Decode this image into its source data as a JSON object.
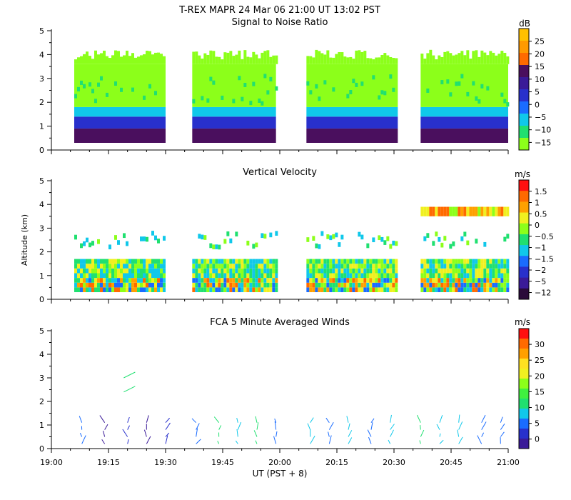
{
  "figure": {
    "title": "T-REX   MAPR 24 Mar 06   21:00 UT   13:02   PST",
    "shared_xlabel": "UT  (PST + 8)",
    "x_tick_labels": [
      "19:00",
      "19:15",
      "19:30",
      "19:45",
      "20:00",
      "20:15",
      "20:30",
      "20:45",
      "21:00"
    ]
  },
  "chart_data": [
    {
      "type": "heatmap",
      "title": "Signal to Noise Ratio",
      "xlabel": "UT  (PST + 8)",
      "ylabel": "Altitude (km)",
      "xlim": [
        "19:00",
        "21:00"
      ],
      "ylim": [
        0,
        5
      ],
      "y_ticks": [
        "0",
        "1",
        "2",
        "3",
        "4",
        "5"
      ],
      "colorbar_unit": "dB",
      "colorbar_labels": [
        "25",
        "20",
        "15",
        "10",
        "5",
        "0",
        "−5",
        "−10",
        "−15"
      ],
      "colorbar_colors": [
        "#ffc000",
        "#ff9a00",
        "#ff6a00",
        "#4a0f5e",
        "#3a1a98",
        "#2830cc",
        "#1a6cff",
        "#10c8ea",
        "#20e070",
        "#8cff1a"
      ],
      "data_segments_ut": [
        [
          "19:06",
          "19:30"
        ],
        [
          "19:37",
          "19:59"
        ],
        [
          "20:07",
          "20:31"
        ],
        [
          "20:37",
          "21:00"
        ]
      ],
      "layers_km_dB": [
        {
          "from_km": 0.3,
          "to_km": 0.9,
          "dB": 12
        },
        {
          "from_km": 0.9,
          "to_km": 1.4,
          "dB": 4
        },
        {
          "from_km": 1.4,
          "to_km": 1.8,
          "dB": -8
        },
        {
          "from_km": 1.8,
          "to_km": 3.6,
          "dB": -15
        }
      ]
    },
    {
      "type": "heatmap",
      "title": "Vertical Velocity",
      "xlabel": "UT  (PST + 8)",
      "ylabel": "Altitude (km)",
      "xlim": [
        "19:00",
        "21:00"
      ],
      "ylim": [
        0,
        5
      ],
      "y_ticks": [
        "0",
        "1",
        "2",
        "3",
        "4",
        "5"
      ],
      "colorbar_unit": "m/s",
      "colorbar_labels": [
        "1.5",
        "1",
        "0.5",
        "0",
        "−0.5",
        "−1",
        "−1.5",
        "−2",
        "−5",
        "−12"
      ],
      "colorbar_colors": [
        "#ff1010",
        "#ff6a00",
        "#ffa000",
        "#f0f020",
        "#8cff1a",
        "#20e070",
        "#10c8ea",
        "#1a6cff",
        "#2830cc",
        "#3a1a98",
        "#2a0a3a"
      ],
      "data_segments_ut": [
        [
          "19:06",
          "19:30"
        ],
        [
          "19:37",
          "19:59"
        ],
        [
          "20:07",
          "20:31"
        ],
        [
          "20:37",
          "21:00"
        ]
      ]
    },
    {
      "type": "vector",
      "title": "FCA 5 Minute Averaged Winds",
      "xlabel": "UT  (PST + 8)",
      "ylabel": "Altitude (km)",
      "xlim": [
        "19:00",
        "21:00"
      ],
      "ylim": [
        0,
        5
      ],
      "y_ticks": [
        "0",
        "1",
        "2",
        "3",
        "4",
        "5"
      ],
      "colorbar_unit": "m/s",
      "colorbar_labels": [
        "30",
        "25",
        "20",
        "15",
        "10",
        "5",
        "0"
      ],
      "colorbar_colors": [
        "#ff1010",
        "#ff6a00",
        "#ffa000",
        "#ffe020",
        "#f0f020",
        "#8cff1a",
        "#40f040",
        "#20e070",
        "#10c8ea",
        "#1a6cff",
        "#2830cc",
        "#3a1a98"
      ],
      "profile_times_ut": [
        "19:08",
        "19:14",
        "19:20",
        "19:25",
        "19:30",
        "19:38",
        "19:44",
        "19:49",
        "19:54",
        "19:59",
        "20:08",
        "20:13",
        "20:18",
        "20:24",
        "20:29",
        "20:37",
        "20:42",
        "20:47",
        "20:53",
        "20:58"
      ],
      "profile_altitude_range_km": [
        0.2,
        1.4
      ],
      "upper_barbs": [
        {
          "time_ut": "19:19",
          "altitude_km": 3.0
        },
        {
          "time_ut": "19:19",
          "altitude_km": 2.4
        }
      ]
    }
  ]
}
